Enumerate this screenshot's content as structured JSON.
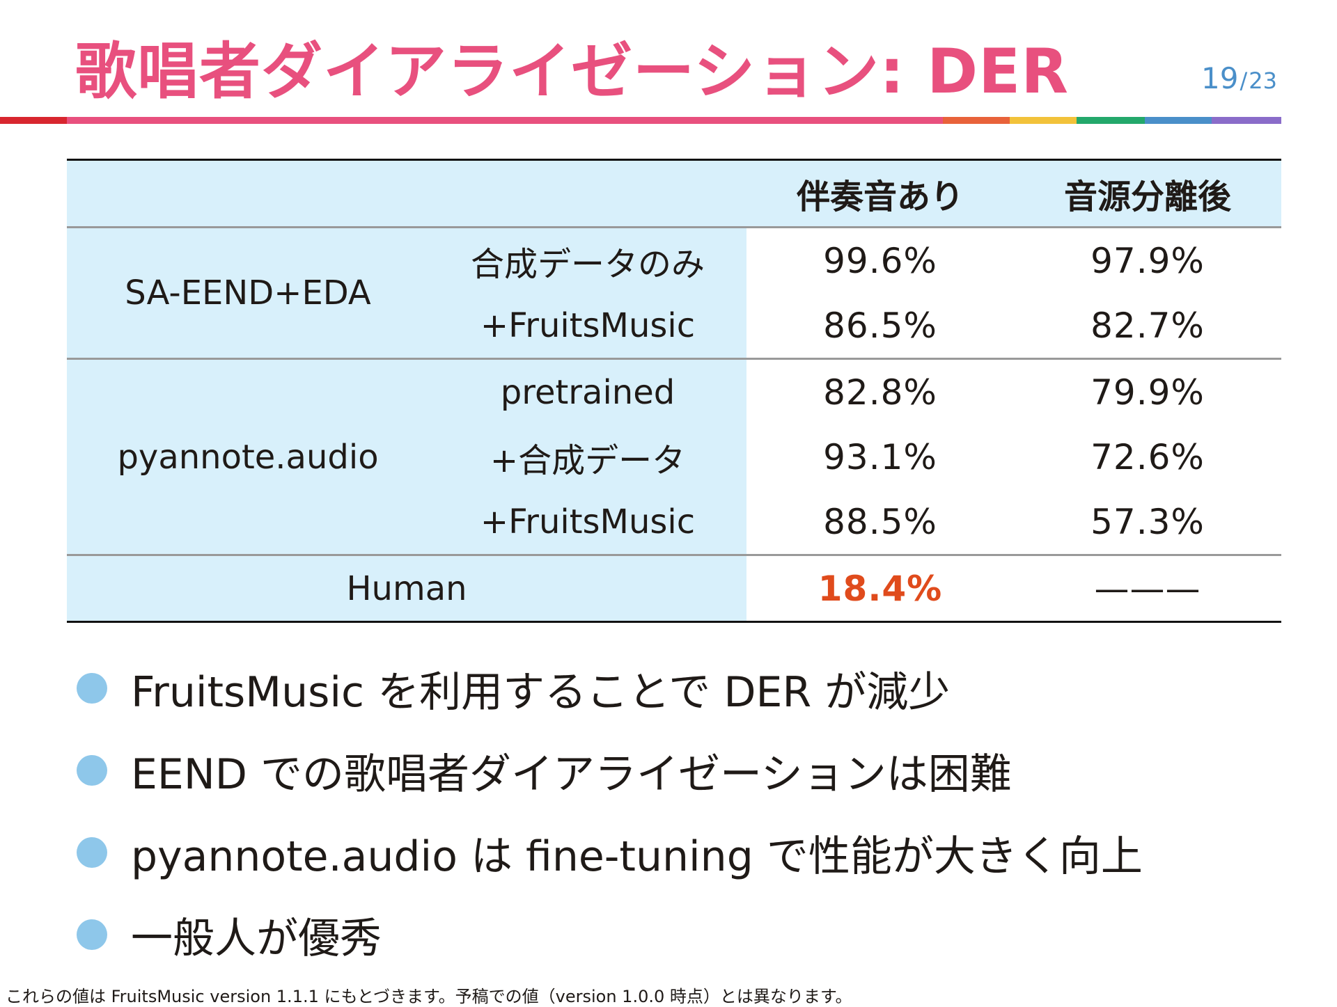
{
  "title": "歌唱者ダイアライゼーション: DER",
  "page": {
    "current": "19",
    "separator": "/",
    "total": "23"
  },
  "rule_colors": [
    "#d8262f",
    "#e8507e",
    "#e8623a",
    "#f2c23a",
    "#23a86b",
    "#4a8fc9",
    "#8a6cc9"
  ],
  "table": {
    "headers": [
      "伴奏音あり",
      "音源分離後"
    ],
    "groups": [
      {
        "method": "SA-EEND+EDA",
        "rows": [
          {
            "variant": "合成データのみ",
            "with_accompaniment": "99.6%",
            "after_separation": "97.9%"
          },
          {
            "variant": "+FruitsMusic",
            "with_accompaniment": "86.5%",
            "after_separation": "82.7%"
          }
        ]
      },
      {
        "method": "pyannote.audio",
        "rows": [
          {
            "variant": "pretrained",
            "with_accompaniment": "82.8%",
            "after_separation": "79.9%"
          },
          {
            "variant": "+合成データ",
            "with_accompaniment": "93.1%",
            "after_separation": "72.6%"
          },
          {
            "variant": "+FruitsMusic",
            "with_accompaniment": "88.5%",
            "after_separation": "57.3%"
          }
        ]
      }
    ],
    "human": {
      "label": "Human",
      "with_accompaniment": "18.4%",
      "after_separation": "———"
    },
    "highlight_color": "#e04b1c"
  },
  "bullets": [
    "FruitsMusic を利用することで DER が減少",
    "EEND での歌唱者ダイアライゼーションは困難",
    "pyannote.audio は fine-tuning で性能が大きく向上",
    "一般人が優秀"
  ],
  "footnote": "これらの値は FruitsMusic version 1.1.1 にもとづきます。予稿での値（version 1.0.0 時点）とは異なります。"
}
